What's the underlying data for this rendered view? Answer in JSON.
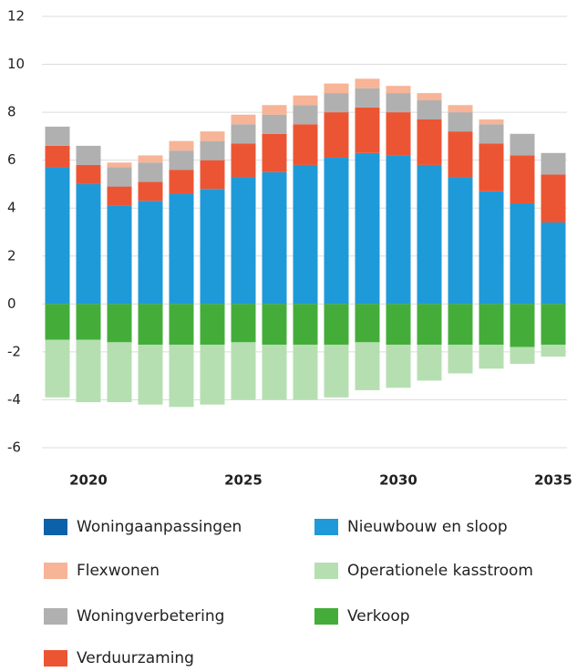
{
  "chart_data": {
    "type": "bar",
    "stacked": true,
    "categories": [
      null,
      "2020",
      null,
      null,
      null,
      null,
      "2025",
      null,
      null,
      null,
      null,
      "2030",
      null,
      null,
      null,
      null,
      "2035"
    ],
    "series": [
      {
        "name": "Woningaanpassingen",
        "color": "#0b62a8",
        "values": [
          0,
          0,
          0,
          0,
          0,
          0,
          0,
          0,
          0,
          0,
          0,
          0,
          0,
          0,
          0,
          0,
          0
        ]
      },
      {
        "name": "Nieuwbouw en sloop",
        "color": "#1f9ad8",
        "values": [
          5.7,
          5.0,
          4.1,
          4.3,
          4.6,
          4.8,
          5.3,
          5.5,
          5.8,
          6.1,
          6.3,
          6.2,
          5.8,
          5.3,
          4.7,
          4.2,
          3.4
        ]
      },
      {
        "name": "Flexwonen",
        "color": "#f7b496",
        "values": [
          0,
          0,
          0.2,
          0.3,
          0.4,
          0.4,
          0.4,
          0.4,
          0.4,
          0.4,
          0.4,
          0.3,
          0.3,
          0.3,
          0.2,
          0,
          0
        ]
      },
      {
        "name": "Operationele kasstroom",
        "color": "#b5dfb0",
        "values": [
          -2.4,
          -2.6,
          -2.5,
          -2.5,
          -2.6,
          -2.5,
          -2.4,
          -2.3,
          -2.3,
          -2.2,
          -2.0,
          -1.8,
          -1.5,
          -1.2,
          -1.0,
          -0.7,
          -0.5
        ]
      },
      {
        "name": "Woningverbetering",
        "color": "#b0b0b0",
        "values": [
          0.8,
          0.8,
          0.8,
          0.8,
          0.8,
          0.8,
          0.8,
          0.8,
          0.8,
          0.8,
          0.8,
          0.8,
          0.8,
          0.8,
          0.8,
          0.9,
          0.9
        ]
      },
      {
        "name": "Verkoop",
        "color": "#44ad3a",
        "values": [
          -1.5,
          -1.5,
          -1.6,
          -1.7,
          -1.7,
          -1.7,
          -1.6,
          -1.7,
          -1.7,
          -1.7,
          -1.6,
          -1.7,
          -1.7,
          -1.7,
          -1.7,
          -1.8,
          -1.7
        ]
      },
      {
        "name": "Verduurzaming",
        "color": "#ec5533",
        "values": [
          0.9,
          0.8,
          0.8,
          0.8,
          1.0,
          1.2,
          1.4,
          1.6,
          1.7,
          1.9,
          1.9,
          1.8,
          1.9,
          1.9,
          2.0,
          2.0,
          2.0
        ]
      }
    ],
    "ylim": [
      -6,
      12
    ],
    "yticks": [
      -6,
      -4,
      -2,
      0,
      2,
      4,
      6,
      8,
      10,
      12
    ],
    "grid": true
  }
}
